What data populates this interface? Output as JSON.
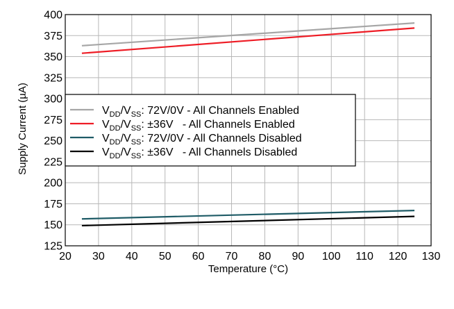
{
  "chart_data": {
    "type": "line",
    "title": "",
    "xlabel": "Temperature (°C)",
    "ylabel": "Supply Current (µA)",
    "xlim": [
      20,
      130
    ],
    "ylim": [
      125,
      400
    ],
    "x_ticks": [
      20,
      30,
      40,
      50,
      60,
      70,
      80,
      90,
      100,
      110,
      120,
      130
    ],
    "y_ticks": [
      125,
      150,
      175,
      200,
      225,
      250,
      275,
      300,
      325,
      350,
      375,
      400
    ],
    "grid": true,
    "legend_position": "middle-left",
    "series": [
      {
        "name": "VDD/VSS: 72V/0V - All Channels Enabled",
        "legend_parts": [
          "V",
          "DD",
          "/V",
          "SS",
          ": 72V/0V - All Channels Enabled"
        ],
        "color": "#a6a6a6",
        "x": [
          25,
          125
        ],
        "y": [
          363,
          390
        ]
      },
      {
        "name": "VDD/VSS: ±36V - All Channels Enabled",
        "legend_parts": [
          "V",
          "DD",
          "/V",
          "SS",
          ": ±36V   - All Channels Enabled"
        ],
        "color": "#ee1c25",
        "x": [
          25,
          125
        ],
        "y": [
          354,
          384
        ]
      },
      {
        "name": "VDD/VSS: 72V/0V - All Channels Disabled",
        "legend_parts": [
          "V",
          "DD",
          "/V",
          "SS",
          ": 72V/0V - All Channels Disabled"
        ],
        "color": "#1e5b66",
        "x": [
          25,
          125
        ],
        "y": [
          157,
          167
        ]
      },
      {
        "name": "VDD/VSS: ±36V - All Channels Disabled",
        "legend_parts": [
          "V",
          "DD",
          "/V",
          "SS",
          ": ±36V   - All Channels Disabled"
        ],
        "color": "#000000",
        "x": [
          25,
          125
        ],
        "y": [
          149,
          160
        ]
      }
    ]
  }
}
